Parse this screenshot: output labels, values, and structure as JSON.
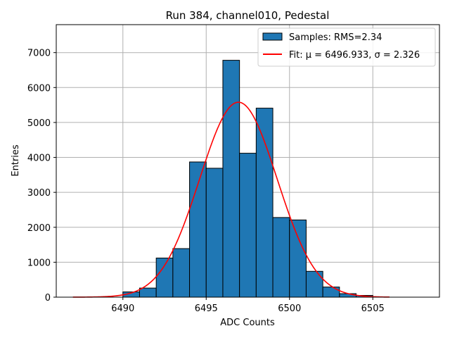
{
  "chart_data": {
    "type": "histogram",
    "title": "Run 384, channel010, Pedestal",
    "xlabel": "ADC Counts",
    "ylabel": "Entries",
    "xlim": [
      6486.0,
      6509.0
    ],
    "ylim": [
      0,
      7800
    ],
    "xticks": [
      6490,
      6495,
      6500,
      6505
    ],
    "yticks": [
      0,
      1000,
      2000,
      3000,
      4000,
      5000,
      6000,
      7000
    ],
    "grid": true,
    "bin_width": 1,
    "bins": [
      {
        "x": 6490,
        "count": 150
      },
      {
        "x": 6491,
        "count": 260
      },
      {
        "x": 6492,
        "count": 1120
      },
      {
        "x": 6493,
        "count": 1390
      },
      {
        "x": 6494,
        "count": 3870
      },
      {
        "x": 6495,
        "count": 3690
      },
      {
        "x": 6496,
        "count": 6780
      },
      {
        "x": 6497,
        "count": 4120
      },
      {
        "x": 6498,
        "count": 5410
      },
      {
        "x": 6499,
        "count": 2280
      },
      {
        "x": 6500,
        "count": 2210
      },
      {
        "x": 6501,
        "count": 740
      },
      {
        "x": 6502,
        "count": 290
      },
      {
        "x": 6503,
        "count": 100
      },
      {
        "x": 6504,
        "count": 50
      }
    ],
    "fit": {
      "mu": 6496.933,
      "sigma": 2.326,
      "amplitude": 5580,
      "x_range": [
        6487,
        6506
      ]
    },
    "legend": {
      "position": "top-right",
      "entries": [
        {
          "label": "Samples: RMS=2.34",
          "kind": "patch"
        },
        {
          "label": "Fit: μ = 6496.933, σ = 2.326",
          "kind": "line"
        }
      ]
    },
    "colors": {
      "bar_fill": "#1f77b4",
      "bar_edge": "#000000",
      "fit_line": "#ff0000",
      "grid": "#b0b0b0"
    }
  }
}
